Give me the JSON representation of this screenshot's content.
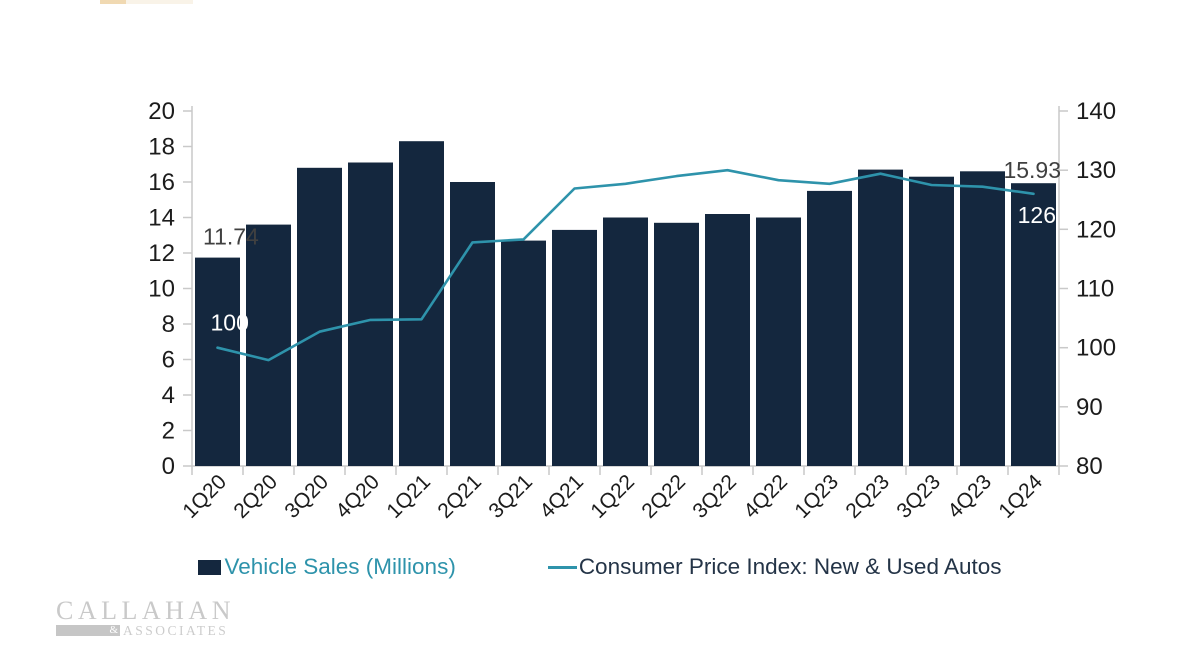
{
  "page": {
    "background": "#ffffff"
  },
  "top_strip": {
    "description": "cropped-logo-remnant"
  },
  "chart_data": {
    "type": "combo",
    "title": "",
    "categories": [
      "1Q20",
      "2Q20",
      "3Q20",
      "4Q20",
      "1Q21",
      "2Q21",
      "3Q21",
      "4Q21",
      "1Q22",
      "2Q22",
      "3Q22",
      "4Q22",
      "1Q23",
      "2Q23",
      "3Q23",
      "4Q23",
      "1Q24"
    ],
    "series": [
      {
        "name": "Vehicle Sales (Millions)",
        "type": "bar",
        "axis": "left",
        "color": "#14273e",
        "values": [
          11.74,
          13.6,
          16.8,
          17.1,
          18.3,
          16.0,
          12.7,
          13.3,
          14.0,
          13.7,
          14.2,
          14.0,
          15.5,
          16.7,
          16.3,
          16.6,
          15.93
        ]
      },
      {
        "name": "Consumer Price Index: New & Used Autos",
        "type": "line",
        "axis": "right",
        "color": "#2e93ab",
        "values": [
          100,
          97.9,
          102.7,
          104.7,
          104.8,
          117.8,
          118.3,
          126.9,
          127.7,
          129.0,
          130.0,
          128.3,
          127.7,
          129.4,
          127.5,
          127.2,
          126
        ]
      }
    ],
    "left_axis": {
      "min": 0,
      "max": 20,
      "step": 2
    },
    "right_axis": {
      "min": 80,
      "max": 140,
      "step": 10
    },
    "grid": "off",
    "legend_position": "bottom",
    "axis_color": "#c9c9c9",
    "text_color": "#1c1c1c",
    "annotations": [
      {
        "target": "bar",
        "index": 0,
        "text": "11.74",
        "align": "start",
        "placement": "above",
        "color": "#404040"
      },
      {
        "target": "bar",
        "index": 16,
        "text": "15.93",
        "align": "end",
        "placement": "above",
        "color": "#404040"
      },
      {
        "target": "line",
        "index": 0,
        "text": "100",
        "align": "start",
        "placement": "above-line",
        "color": "#ffffff"
      },
      {
        "target": "line",
        "index": 16,
        "text": "126",
        "align": "end",
        "placement": "below-line",
        "color": "#ffffff"
      }
    ]
  },
  "legend": {
    "items": [
      {
        "label": "Vehicle Sales (Millions)",
        "swatch": "square",
        "color": "#14273e",
        "label_color": "#2e93ab"
      },
      {
        "label": "Consumer Price Index: New & Used Autos",
        "swatch": "line",
        "color": "#2e93ab",
        "label_color": "#243447"
      }
    ]
  },
  "logo": {
    "name_top": "CALLAHAN",
    "ampersand": "&",
    "name_bottom": "ASSOCIATES"
  }
}
